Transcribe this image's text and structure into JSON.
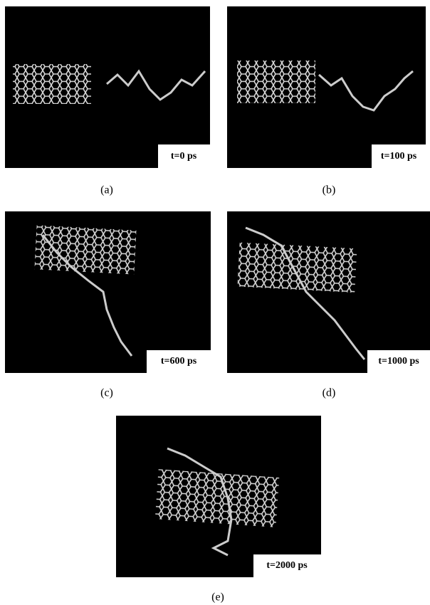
{
  "panels": [
    {
      "time_label": "t=0 ps",
      "caption": "(a)"
    },
    {
      "time_label": "t=100 ps",
      "caption": "(b)"
    },
    {
      "time_label": "t=600 ps",
      "caption": "(c)"
    },
    {
      "time_label": "t=1000 ps",
      "caption": "(d)"
    },
    {
      "time_label": "t=2000 ps",
      "caption": "(e)"
    }
  ]
}
